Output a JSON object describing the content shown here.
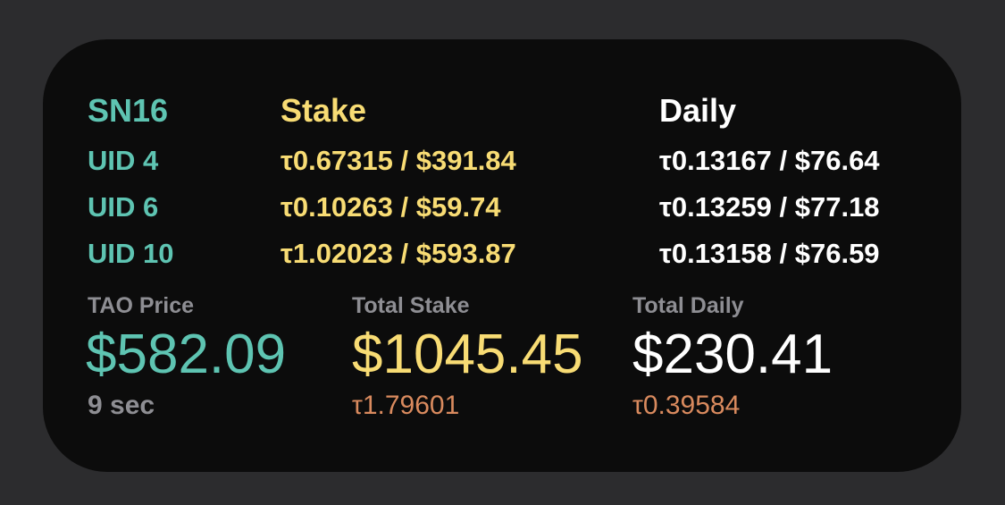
{
  "header": {
    "subnet": "SN16",
    "stake_label": "Stake",
    "daily_label": "Daily"
  },
  "rows": [
    {
      "uid": "UID 4",
      "stake": "τ0.67315 / $391.84",
      "daily": "τ0.13167 / $76.64"
    },
    {
      "uid": "UID 6",
      "stake": "τ0.10263 / $59.74",
      "daily": "τ0.13259 / $77.18"
    },
    {
      "uid": "UID 10",
      "stake": "τ1.02023 / $593.87",
      "daily": "τ0.13158 / $76.59"
    }
  ],
  "summary": {
    "price_label": "TAO Price",
    "price_value": "$582.09",
    "updated": "9 sec",
    "total_stake_label": "Total Stake",
    "total_stake_value": "$1045.45",
    "total_stake_tao": "τ1.79601",
    "total_daily_label": "Total Daily",
    "total_daily_value": "$230.41",
    "total_daily_tao": "τ0.39584"
  },
  "colors": {
    "background": "#2c2c2e",
    "card": "#0c0c0c",
    "teal": "#5ec4b2",
    "yellow": "#f8dc74",
    "white": "#ffffff",
    "gray": "#8e8e93",
    "orange": "#d98a5e"
  }
}
